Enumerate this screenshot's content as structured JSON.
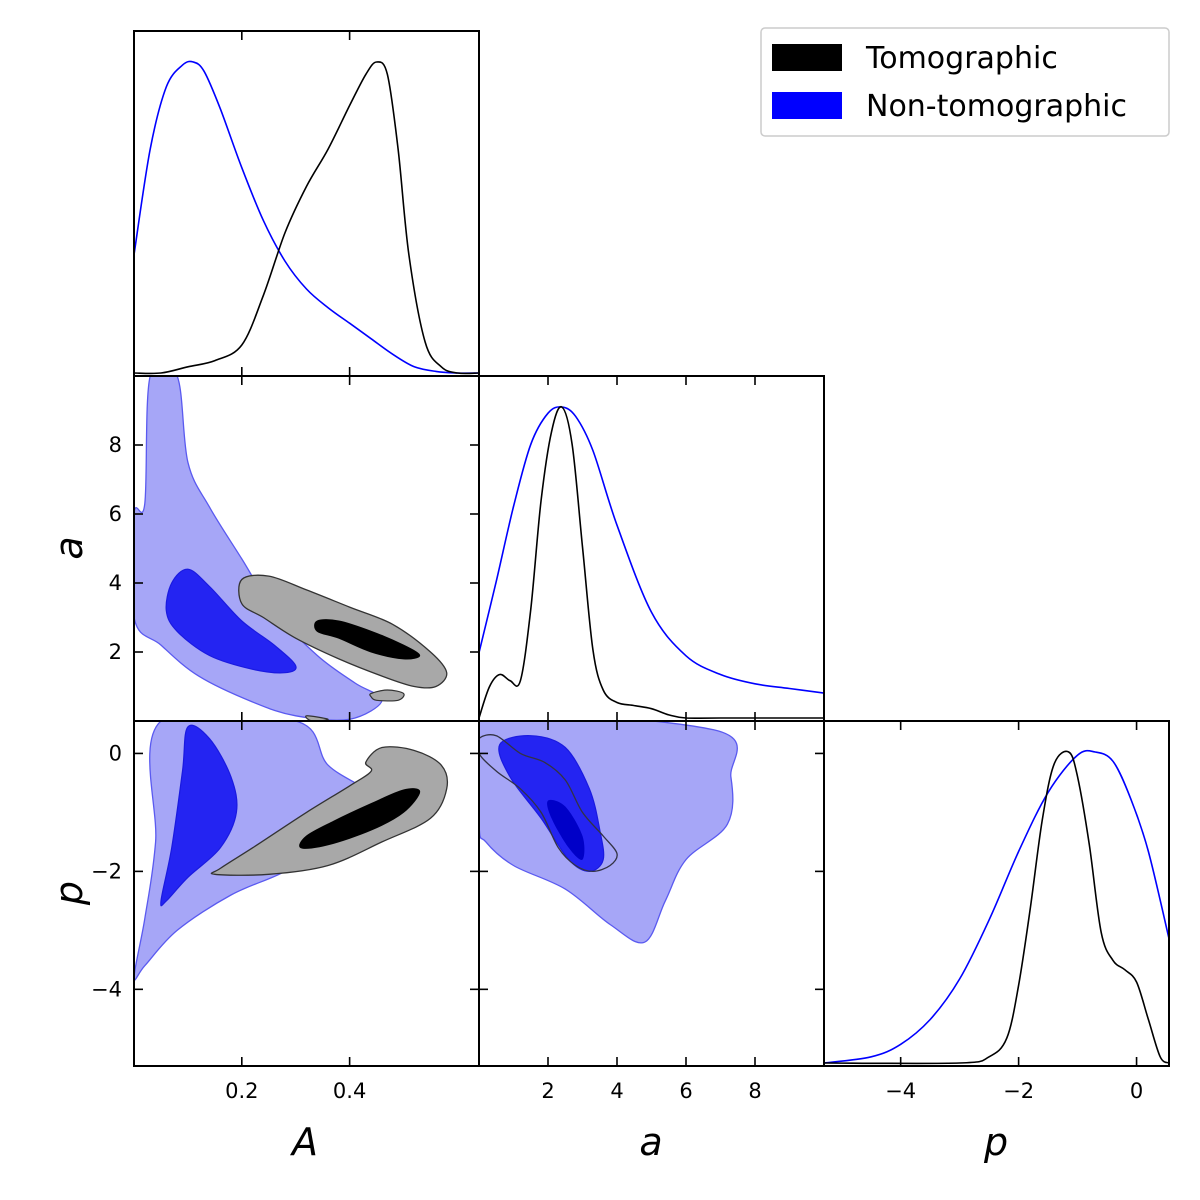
{
  "chart_data": {
    "type": "triangle-corner",
    "parameters": [
      "A",
      "a",
      "p"
    ],
    "axis_labels": {
      "A": "A",
      "a": "a",
      "p": "p"
    },
    "colors": {
      "Tomographic": "#000000",
      "Non-tomographic": "#0000ff"
    },
    "legend": {
      "placement": "top-right",
      "entries": [
        {
          "name": "Tomographic",
          "color": "#000000"
        },
        {
          "name": "Non-tomographic",
          "color": "#0000ff"
        }
      ]
    },
    "ranges": {
      "A": [
        0.0,
        0.64
      ],
      "a": [
        0.0,
        10.0
      ],
      "p": [
        -5.3,
        0.55
      ]
    },
    "ticks": {
      "A": [
        {
          "v": 0.2,
          "label": "0.2"
        },
        {
          "v": 0.4,
          "label": "0.4"
        }
      ],
      "a_x": [
        {
          "v": 2,
          "label": "2"
        },
        {
          "v": 4,
          "label": "4"
        },
        {
          "v": 6,
          "label": "6"
        },
        {
          "v": 8,
          "label": "8"
        }
      ],
      "a_y": [
        {
          "v": 2,
          "label": "2"
        },
        {
          "v": 4,
          "label": "4"
        },
        {
          "v": 6,
          "label": "6"
        },
        {
          "v": 8,
          "label": "8"
        }
      ],
      "p_x": [
        {
          "v": -4,
          "label": "−4"
        },
        {
          "v": -2,
          "label": "−2"
        },
        {
          "v": 0,
          "label": "0"
        }
      ],
      "p_y": [
        {
          "v": -4,
          "label": "−4"
        },
        {
          "v": -2,
          "label": "−2"
        },
        {
          "v": 0,
          "label": "0"
        }
      ]
    },
    "marginals": {
      "A": {
        "Non-tomographic": {
          "x": [
            0.0,
            0.03,
            0.06,
            0.09,
            0.11,
            0.13,
            0.16,
            0.2,
            0.24,
            0.28,
            0.32,
            0.36,
            0.4,
            0.44,
            0.48,
            0.52,
            0.56,
            0.6,
            0.64
          ],
          "y": [
            0.38,
            0.72,
            0.92,
            0.99,
            1.0,
            0.97,
            0.85,
            0.66,
            0.49,
            0.36,
            0.27,
            0.21,
            0.16,
            0.11,
            0.06,
            0.02,
            0.005,
            0.0,
            0.0
          ]
        },
        "Tomographic": {
          "x": [
            0.0,
            0.05,
            0.1,
            0.15,
            0.2,
            0.24,
            0.28,
            0.32,
            0.36,
            0.4,
            0.43,
            0.45,
            0.47,
            0.49,
            0.51,
            0.54,
            0.57,
            0.6,
            0.64
          ],
          "y": [
            0.0,
            0.0,
            0.02,
            0.04,
            0.09,
            0.25,
            0.45,
            0.6,
            0.72,
            0.86,
            0.96,
            1.0,
            0.96,
            0.72,
            0.38,
            0.1,
            0.02,
            0.0,
            0.0
          ]
        }
      },
      "a": {
        "Non-tomographic": {
          "x": [
            0.0,
            0.5,
            1.0,
            1.5,
            2.0,
            2.4,
            2.8,
            3.3,
            4.0,
            5.0,
            6.0,
            7.0,
            8.0,
            9.0,
            10.0
          ],
          "y": [
            0.21,
            0.44,
            0.68,
            0.88,
            0.98,
            1.0,
            0.97,
            0.86,
            0.62,
            0.34,
            0.2,
            0.14,
            0.11,
            0.095,
            0.08
          ]
        },
        "Tomographic": {
          "x": [
            0.0,
            0.3,
            0.6,
            0.9,
            1.2,
            1.5,
            1.8,
            2.1,
            2.4,
            2.7,
            3.0,
            3.3,
            3.6,
            4.0,
            4.5,
            5.0,
            5.5,
            6.0,
            7.0,
            10.0
          ],
          "y": [
            0.0,
            0.1,
            0.14,
            0.12,
            0.12,
            0.35,
            0.7,
            0.92,
            1.0,
            0.88,
            0.55,
            0.22,
            0.09,
            0.05,
            0.04,
            0.03,
            0.01,
            0.0,
            0.0,
            0.0
          ]
        }
      },
      "p": {
        "Non-tomographic": {
          "x": [
            -5.3,
            -4.5,
            -4.0,
            -3.5,
            -3.0,
            -2.5,
            -2.0,
            -1.5,
            -1.0,
            -0.7,
            -0.4,
            -0.1,
            0.2,
            0.55
          ],
          "y": [
            0.0,
            0.02,
            0.06,
            0.14,
            0.27,
            0.46,
            0.68,
            0.87,
            0.99,
            1.0,
            0.97,
            0.85,
            0.68,
            0.4
          ]
        },
        "Tomographic": {
          "x": [
            -5.3,
            -3.0,
            -2.5,
            -2.2,
            -2.0,
            -1.8,
            -1.6,
            -1.4,
            -1.15,
            -1.0,
            -0.8,
            -0.6,
            -0.4,
            -0.2,
            0.0,
            0.2,
            0.4,
            0.55
          ],
          "y": [
            0.0,
            0.0,
            0.02,
            0.08,
            0.25,
            0.5,
            0.78,
            0.96,
            1.0,
            0.92,
            0.7,
            0.42,
            0.33,
            0.3,
            0.26,
            0.14,
            0.02,
            0.0
          ]
        }
      }
    },
    "contours": {
      "A_a": {
        "Non-tomographic": {
          "outer": [
            [
              0.0,
              6.0
            ],
            [
              0.02,
              6.3
            ],
            [
              0.03,
              10.0
            ],
            [
              0.08,
              10.0
            ],
            [
              0.1,
              7.5
            ],
            [
              0.14,
              6.2
            ],
            [
              0.2,
              4.7
            ],
            [
              0.26,
              3.2
            ],
            [
              0.34,
              1.9
            ],
            [
              0.41,
              1.1
            ],
            [
              0.46,
              0.6
            ],
            [
              0.4,
              0.05
            ],
            [
              0.3,
              0.15
            ],
            [
              0.22,
              0.55
            ],
            [
              0.12,
              1.3
            ],
            [
              0.05,
              2.2
            ],
            [
              0.0,
              3.0
            ]
          ],
          "inner": [
            [
              0.06,
              3.2
            ],
            [
              0.07,
              4.0
            ],
            [
              0.1,
              4.4
            ],
            [
              0.14,
              3.9
            ],
            [
              0.2,
              2.9
            ],
            [
              0.26,
              2.2
            ],
            [
              0.3,
              1.6
            ],
            [
              0.28,
              1.4
            ],
            [
              0.22,
              1.5
            ],
            [
              0.14,
              1.9
            ],
            [
              0.08,
              2.6
            ]
          ]
        },
        "Tomographic": {
          "outer": [
            [
              0.2,
              4.1
            ],
            [
              0.25,
              4.2
            ],
            [
              0.32,
              3.8
            ],
            [
              0.4,
              3.3
            ],
            [
              0.48,
              2.8
            ],
            [
              0.55,
              2.0
            ],
            [
              0.58,
              1.4
            ],
            [
              0.56,
              1.0
            ],
            [
              0.52,
              1.0
            ],
            [
              0.46,
              1.3
            ],
            [
              0.38,
              1.8
            ],
            [
              0.3,
              2.4
            ],
            [
              0.24,
              3.0
            ],
            [
              0.2,
              3.4
            ]
          ],
          "inner": [
            [
              0.34,
              2.9
            ],
            [
              0.38,
              2.9
            ],
            [
              0.44,
              2.6
            ],
            [
              0.5,
              2.2
            ],
            [
              0.53,
              1.9
            ],
            [
              0.5,
              1.8
            ],
            [
              0.44,
              2.0
            ],
            [
              0.38,
              2.4
            ],
            [
              0.34,
              2.6
            ]
          ],
          "islands": [
            [
              [
                0.44,
                0.8
              ],
              [
                0.47,
                0.9
              ],
              [
                0.5,
                0.8
              ],
              [
                0.49,
                0.6
              ],
              [
                0.45,
                0.6
              ],
              [
                0.44,
                0.7
              ]
            ],
            [
              [
                0.32,
                0.15
              ],
              [
                0.36,
                0.05
              ],
              [
                0.33,
                0.0
              ]
            ]
          ]
        }
      },
      "A_p": {
        "Non-tomographic": {
          "outer": [
            [
              0.0,
              -3.8
            ],
            [
              0.02,
              -2.8
            ],
            [
              0.04,
              -1.5
            ],
            [
              0.05,
              0.55
            ],
            [
              0.3,
              0.55
            ],
            [
              0.36,
              -0.2
            ],
            [
              0.44,
              -0.7
            ],
            [
              0.42,
              -1.1
            ],
            [
              0.36,
              -1.5
            ],
            [
              0.28,
              -2.0
            ],
            [
              0.18,
              -2.4
            ],
            [
              0.08,
              -3.0
            ],
            [
              0.02,
              -3.6
            ]
          ],
          "inner": [
            [
              0.05,
              -2.5
            ],
            [
              0.07,
              -1.6
            ],
            [
              0.09,
              -0.3
            ],
            [
              0.1,
              0.45
            ],
            [
              0.14,
              0.25
            ],
            [
              0.18,
              -0.4
            ],
            [
              0.19,
              -1.0
            ],
            [
              0.16,
              -1.6
            ],
            [
              0.1,
              -2.1
            ],
            [
              0.06,
              -2.5
            ]
          ]
        },
        "Tomographic": {
          "outer": [
            [
              0.15,
              -2.05
            ],
            [
              0.25,
              -2.05
            ],
            [
              0.36,
              -1.9
            ],
            [
              0.46,
              -1.5
            ],
            [
              0.55,
              -1.1
            ],
            [
              0.58,
              -0.6
            ],
            [
              0.57,
              -0.2
            ],
            [
              0.52,
              0.05
            ],
            [
              0.46,
              0.1
            ],
            [
              0.43,
              -0.15
            ],
            [
              0.44,
              -0.3
            ],
            [
              0.4,
              -0.55
            ],
            [
              0.32,
              -1.0
            ],
            [
              0.22,
              -1.6
            ],
            [
              0.16,
              -1.95
            ]
          ],
          "inner": [
            [
              0.31,
              -1.6
            ],
            [
              0.36,
              -1.55
            ],
            [
              0.44,
              -1.3
            ],
            [
              0.5,
              -1.0
            ],
            [
              0.53,
              -0.65
            ],
            [
              0.5,
              -0.62
            ],
            [
              0.44,
              -0.85
            ],
            [
              0.37,
              -1.15
            ],
            [
              0.32,
              -1.4
            ]
          ]
        }
      },
      "a_p": {
        "Non-tomographic": {
          "outer": [
            [
              0.0,
              -1.2
            ],
            [
              0.0,
              0.55
            ],
            [
              6.8,
              0.4
            ],
            [
              7.3,
              -0.4
            ],
            [
              7.2,
              -1.2
            ],
            [
              6.0,
              -1.8
            ],
            [
              5.4,
              -2.5
            ],
            [
              4.8,
              -3.2
            ],
            [
              3.8,
              -2.9
            ],
            [
              2.5,
              -2.3
            ],
            [
              1.0,
              -1.9
            ],
            [
              0.2,
              -1.5
            ]
          ],
          "inner": [
            [
              0.6,
              0.15
            ],
            [
              1.5,
              0.3
            ],
            [
              2.5,
              0.1
            ],
            [
              3.2,
              -0.6
            ],
            [
              3.5,
              -1.3
            ],
            [
              3.6,
              -1.8
            ],
            [
              3.2,
              -2.0
            ],
            [
              2.6,
              -1.8
            ],
            [
              1.8,
              -1.1
            ],
            [
              0.9,
              -0.4
            ]
          ],
          "core": [
            [
              2.0,
              -0.8
            ],
            [
              2.5,
              -0.9
            ],
            [
              3.0,
              -1.4
            ],
            [
              3.0,
              -1.8
            ],
            [
              2.6,
              -1.6
            ],
            [
              2.1,
              -1.1
            ]
          ]
        },
        "Tomographic": {
          "outer": [
            [
              0.0,
              0.25
            ],
            [
              0.5,
              0.3
            ],
            [
              1.2,
              0.0
            ],
            [
              1.9,
              -0.15
            ],
            [
              2.5,
              -0.45
            ],
            [
              3.0,
              -1.0
            ],
            [
              3.6,
              -1.4
            ],
            [
              4.0,
              -1.7
            ],
            [
              3.8,
              -1.9
            ],
            [
              3.3,
              -2.0
            ],
            [
              2.8,
              -1.9
            ],
            [
              2.3,
              -1.6
            ],
            [
              1.8,
              -1.0
            ],
            [
              1.2,
              -0.6
            ],
            [
              0.5,
              -0.3
            ],
            [
              0.0,
              0.0
            ]
          ]
        }
      }
    }
  }
}
